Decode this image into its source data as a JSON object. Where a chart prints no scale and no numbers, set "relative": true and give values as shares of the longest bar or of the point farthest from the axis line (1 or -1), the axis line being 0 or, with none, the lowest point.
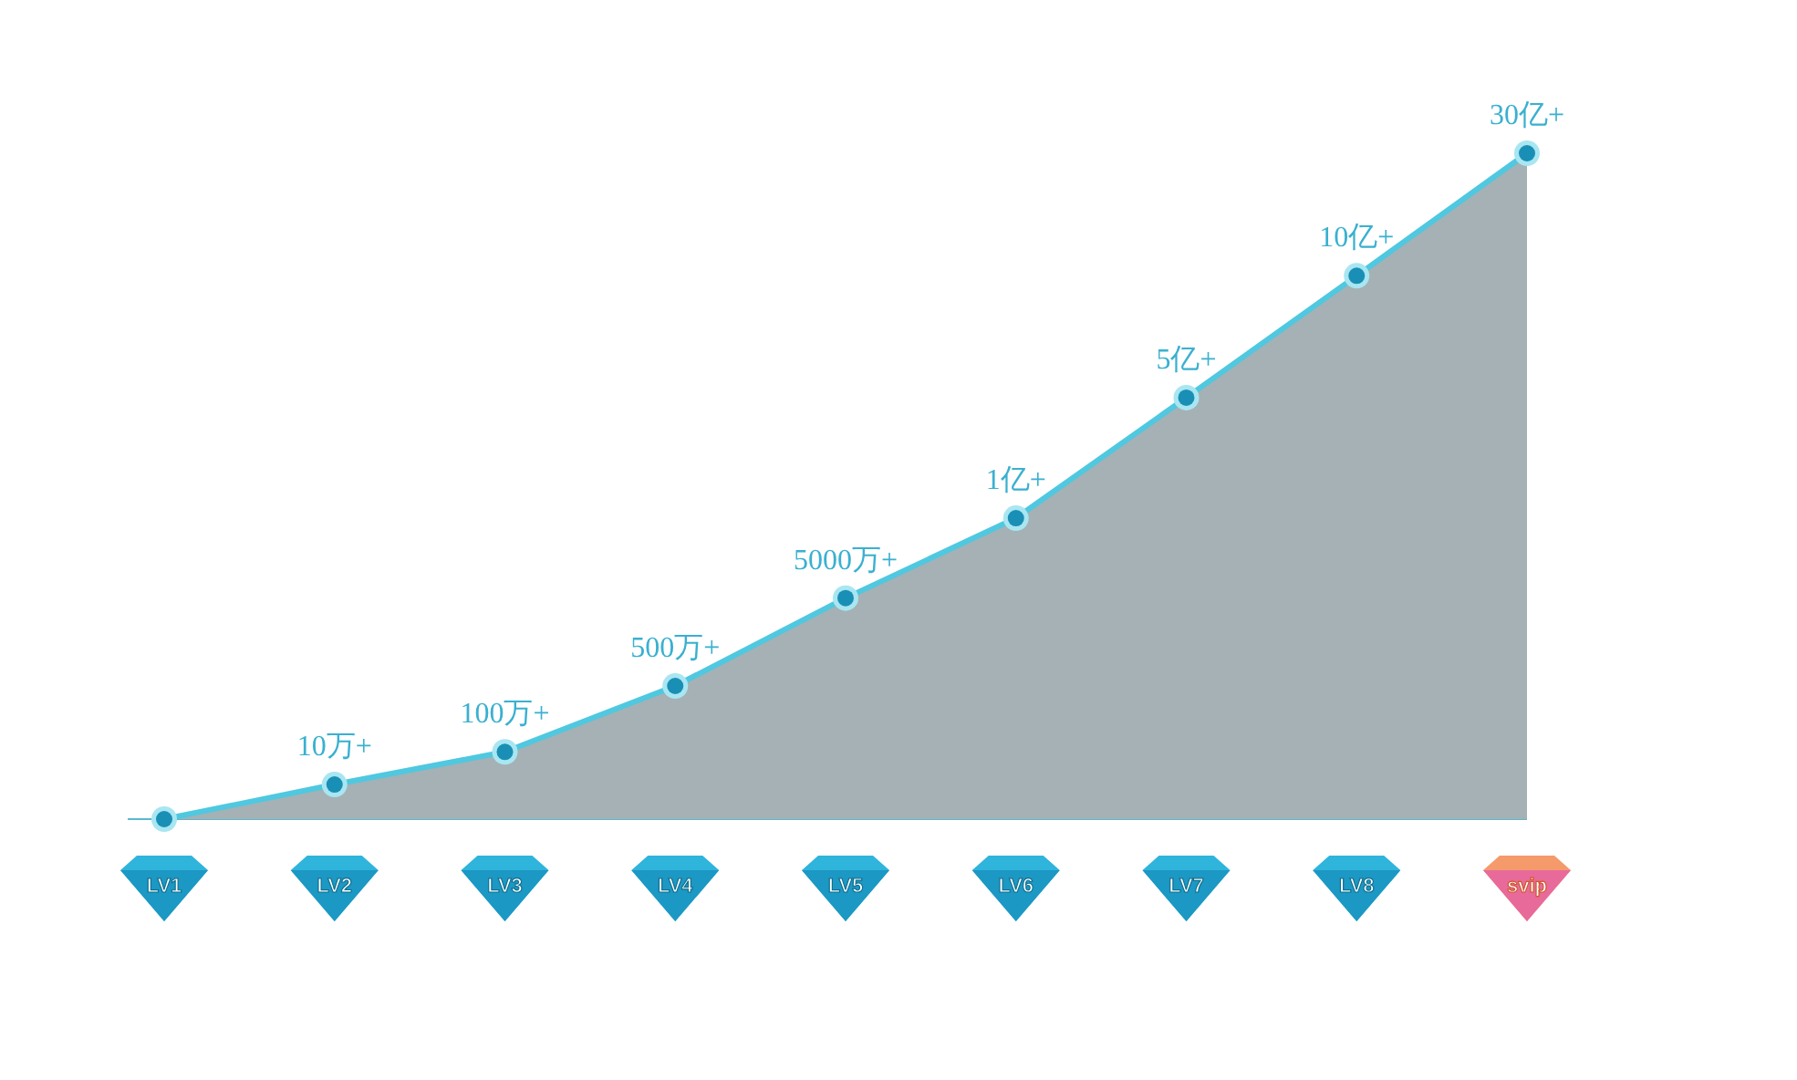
{
  "chart_data": {
    "type": "area",
    "relative": true,
    "categories": [
      "LV1",
      "LV2",
      "LV3",
      "LV4",
      "LV5",
      "LV6",
      "LV7",
      "LV8",
      "svip"
    ],
    "series": [
      {
        "color": "#4fc8e0",
        "values": [
          0,
          0.052,
          0.101,
          0.2,
          0.332,
          0.452,
          0.633,
          0.816,
          1
        ]
      }
    ],
    "annotations": [
      {
        "text": "10万+",
        "x": "LV2",
        "y": 0.052
      },
      {
        "text": "100万+",
        "x": "LV3",
        "y": 0.101
      },
      {
        "text": "500万+",
        "x": "LV4",
        "y": 0.2
      },
      {
        "text": "5000万+",
        "x": "LV5",
        "y": 0.332
      },
      {
        "text": "1亿+",
        "x": "LV6",
        "y": 0.452
      },
      {
        "text": "5亿+",
        "x": "LV7",
        "y": 0.633
      },
      {
        "text": "10亿+",
        "x": "LV8",
        "y": 0.816
      },
      {
        "text": "30亿+",
        "x": "svip",
        "y": 1
      }
    ],
    "marker": "circle",
    "line_style": "solid",
    "grid": false
  }
}
